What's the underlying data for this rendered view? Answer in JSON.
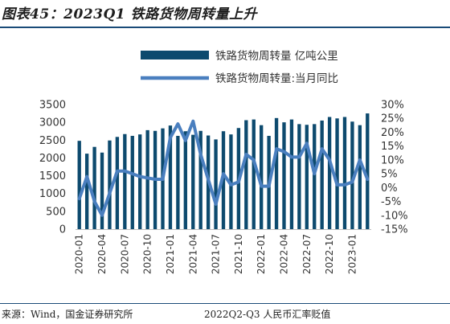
{
  "figure": {
    "title": "图表45：2023Q1 铁路货物周转量上升",
    "source": "来源：Wind，国金证券研究所",
    "footer_right": "2022Q2-Q3 人民币汇率贬值"
  },
  "chart_data": {
    "type": "bar",
    "colors": {
      "bar": "#0d4a6e",
      "line": "#4a7fbf"
    },
    "grid": false,
    "legend_position": "top",
    "x": [
      "2020-01",
      "2020-02",
      "2020-03",
      "2020-04",
      "2020-05",
      "2020-06",
      "2020-07",
      "2020-08",
      "2020-09",
      "2020-10",
      "2020-11",
      "2020-12",
      "2021-01",
      "2021-02",
      "2021-03",
      "2021-04",
      "2021-05",
      "2021-06",
      "2021-07",
      "2021-08",
      "2021-09",
      "2021-10",
      "2021-11",
      "2021-12",
      "2022-01",
      "2022-02",
      "2022-03",
      "2022-04",
      "2022-05",
      "2022-06",
      "2022-07",
      "2022-08",
      "2022-09",
      "2022-10",
      "2022-11",
      "2022-12",
      "2023-01",
      "2023-02",
      "2023-03"
    ],
    "x_tick_labels": [
      "2020-01",
      "2020-04",
      "2020-07",
      "2020-10",
      "2021-01",
      "2021-04",
      "2021-07",
      "2021-10",
      "2022-01",
      "2022-04",
      "2022-07",
      "2022-10",
      "2023-01"
    ],
    "x_tick_every": 3,
    "series": [
      {
        "name": "铁路货物周转量 亿吨公里",
        "type": "bar",
        "axis": "left",
        "values": [
          2480,
          2120,
          2310,
          2150,
          2490,
          2590,
          2670,
          2620,
          2660,
          2780,
          2760,
          2830,
          2910,
          2620,
          2750,
          2650,
          2760,
          2630,
          2520,
          2750,
          2660,
          2840,
          3060,
          3080,
          2920,
          2620,
          3120,
          3000,
          3080,
          2950,
          2930,
          2950,
          3050,
          3150,
          3110,
          3150,
          3020,
          2920,
          3250
        ]
      },
      {
        "name": "铁路货物周转量:当月同比",
        "type": "line",
        "axis": "right",
        "values": [
          -4,
          4,
          -5,
          -10,
          -2,
          6,
          6,
          5,
          4,
          3.5,
          3,
          3,
          18,
          23,
          17,
          24,
          12,
          3,
          -6,
          5,
          1,
          2,
          12,
          10,
          0.5,
          0.5,
          14,
          13,
          11,
          11,
          16,
          5,
          14,
          10,
          1,
          1,
          2,
          10,
          3
        ]
      }
    ],
    "y_left": {
      "lim": [
        0,
        3500
      ],
      "ticks": [
        "0",
        "500",
        "1000",
        "1500",
        "2000",
        "2500",
        "3000",
        "3500"
      ]
    },
    "y_right": {
      "lim": [
        -15,
        30
      ],
      "ticks": [
        "-15%",
        "-10%",
        "-5%",
        "0%",
        "5%",
        "10%",
        "15%",
        "20%",
        "25%",
        "30%"
      ]
    }
  }
}
